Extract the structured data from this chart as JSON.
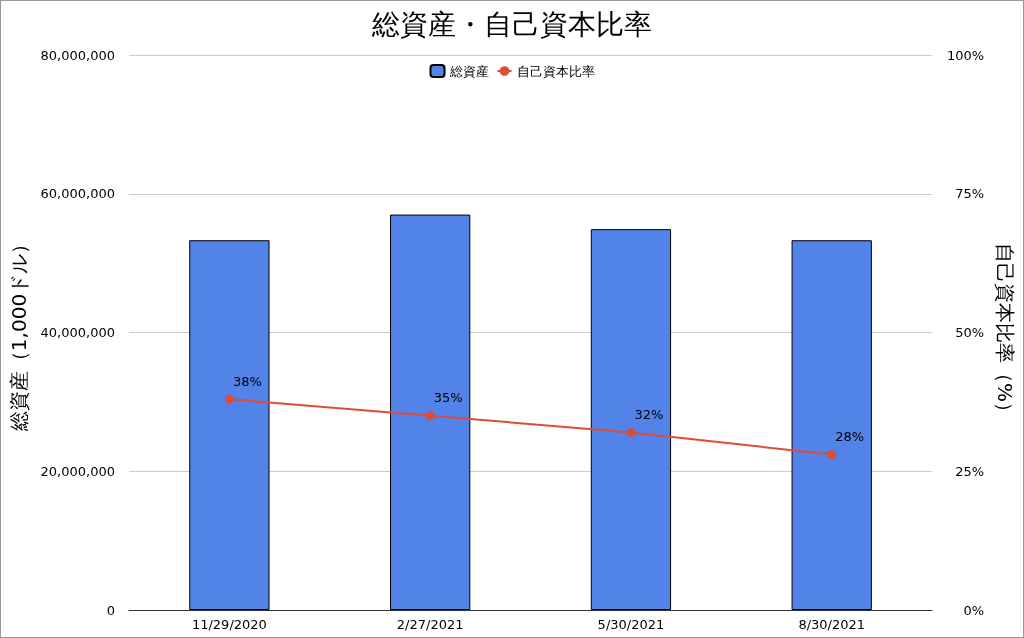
{
  "chart_data": {
    "type": "bar",
    "title": "総資産・自己資本比率",
    "categories": [
      "11/29/2020",
      "2/27/2021",
      "5/30/2021",
      "8/30/2021"
    ],
    "series": [
      {
        "name": "総資産",
        "color": "#5183e8",
        "values": [
          53300000,
          57000000,
          54900000,
          53300000
        ]
      },
      {
        "name": "自己資本比率",
        "type": "line",
        "axis": "y2",
        "color": "#dc4c3a",
        "values": [
          38,
          35,
          32,
          28
        ],
        "value_labels": [
          "38%",
          "35%",
          "32%",
          "28%"
        ]
      }
    ],
    "ylabel": "総資産（1,000ドル）",
    "y2label": "自己資本比率（%）",
    "ylim": [
      0,
      80000000
    ],
    "yticks": [
      {
        "value": 0,
        "label": "0"
      },
      {
        "value": 20000000,
        "label": "20,000,000"
      },
      {
        "value": 40000000,
        "label": "40,000,000"
      },
      {
        "value": 60000000,
        "label": "60,000,000"
      },
      {
        "value": 80000000,
        "label": "80,000,000"
      }
    ],
    "y2lim": [
      0,
      100
    ],
    "y2ticks": [
      {
        "value": 0,
        "label": "0%"
      },
      {
        "value": 25,
        "label": "25%"
      },
      {
        "value": 50,
        "label": "50%"
      },
      {
        "value": 75,
        "label": "75%"
      },
      {
        "value": 100,
        "label": "100%"
      }
    ],
    "grid": "y",
    "legend": "top",
    "marker": "circle"
  }
}
